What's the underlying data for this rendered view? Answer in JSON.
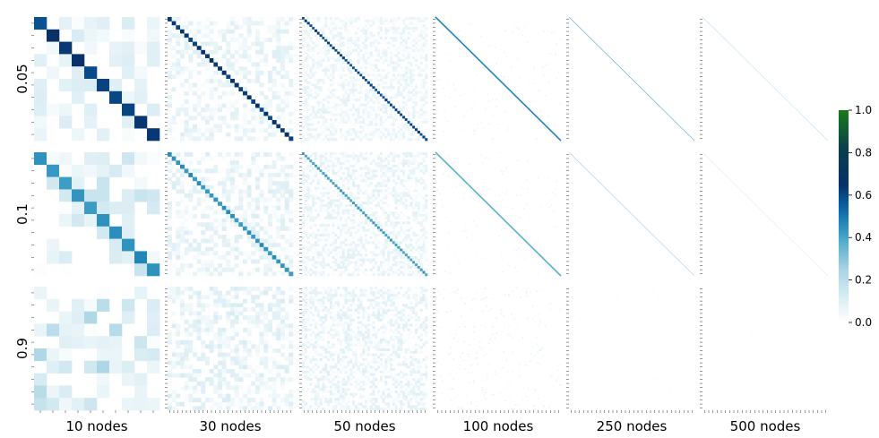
{
  "chart_data": {
    "type": "heatmap",
    "title": "",
    "row_labels": [
      "0.05",
      "0.1",
      "0.9"
    ],
    "column_labels": [
      "10 nodes",
      "30 nodes",
      "50 nodes",
      "100 nodes",
      "250 nodes",
      "500 nodes"
    ],
    "node_counts": [
      10,
      30,
      50,
      100,
      250,
      500
    ],
    "colorbar": {
      "min": 0.0,
      "max": 1.0,
      "ticks": [
        "0.0",
        "0.2",
        "0.4",
        "0.6",
        "0.8",
        "1.0"
      ],
      "colors": [
        "#ffffff",
        "#d9ecf3",
        "#a8d3e4",
        "#5bb0cd",
        "#2a8fbc",
        "#0a5fa0",
        "#08306b",
        "#0b3f4a",
        "#1a7a1a"
      ]
    },
    "diagonal_value": {
      "0.05": [
        0.62,
        0.62,
        0.6,
        0.42,
        0.3,
        0.16
      ],
      "0.1": [
        0.42,
        0.42,
        0.38,
        0.3,
        0.2,
        0.1
      ],
      "0.9": [
        0.06,
        0.04,
        0.03,
        0.02,
        0.01,
        0.005
      ]
    },
    "offdiagonal_max": {
      "0.05": [
        0.12,
        0.1,
        0.08,
        0.06,
        0.03,
        0.015
      ],
      "0.1": [
        0.15,
        0.11,
        0.09,
        0.06,
        0.03,
        0.015
      ],
      "0.9": [
        0.2,
        0.12,
        0.1,
        0.07,
        0.035,
        0.02
      ]
    },
    "grid": false,
    "legend": "right"
  }
}
